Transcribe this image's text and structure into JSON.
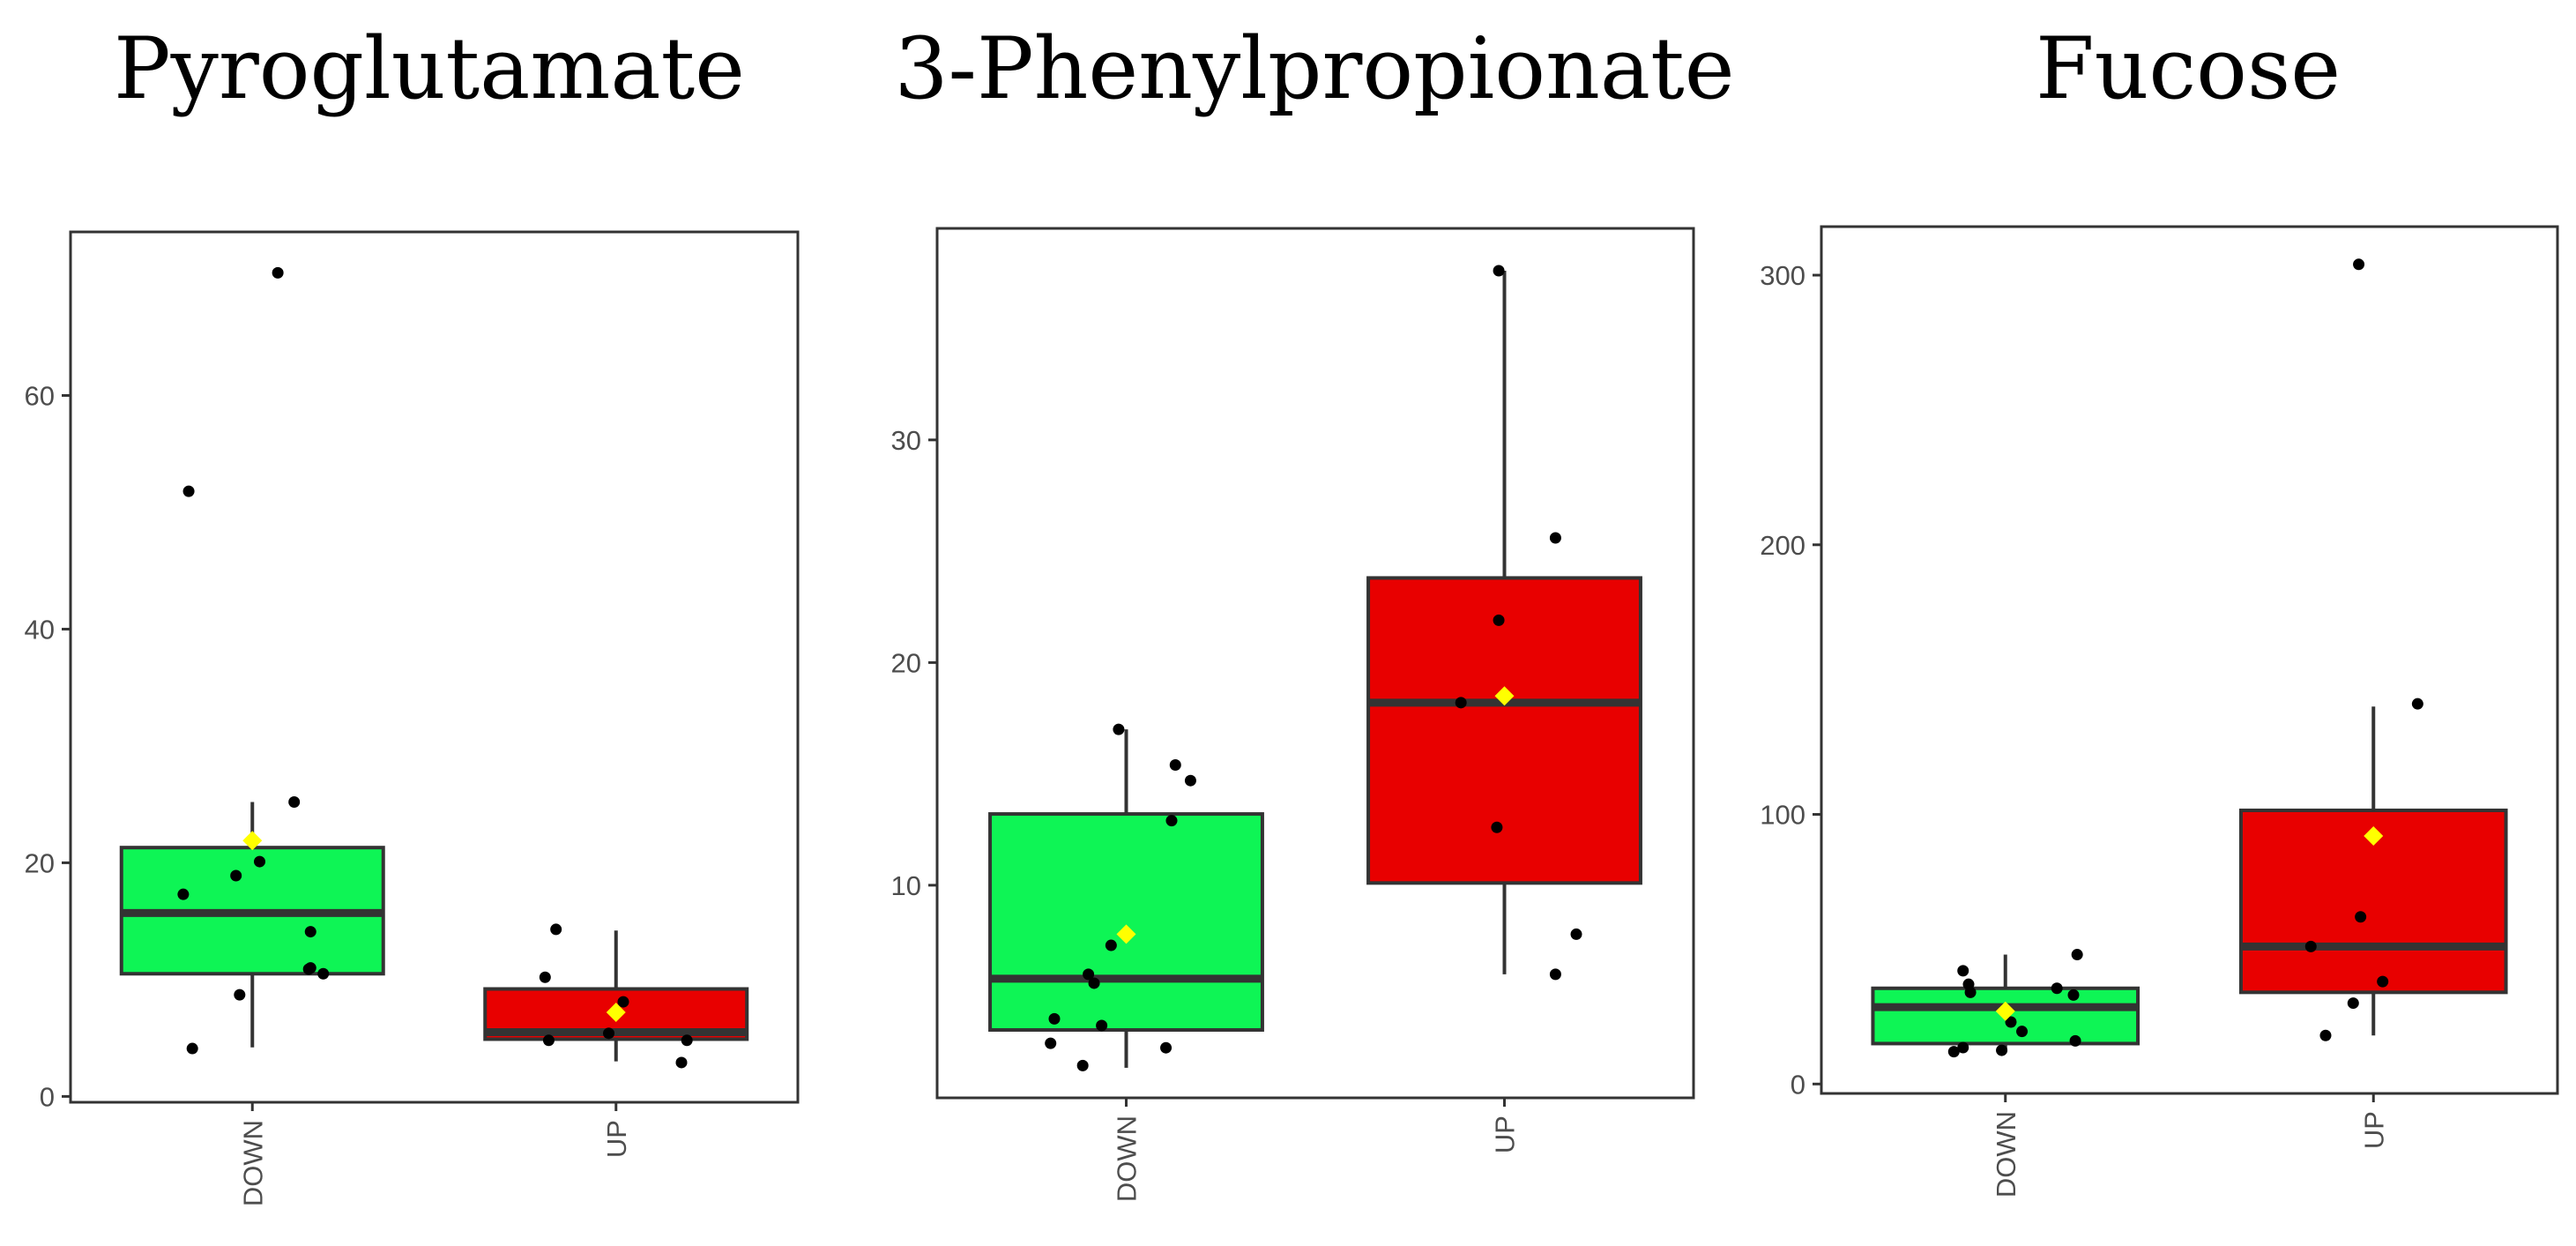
{
  "colors": {
    "down_fill": "#0ef555",
    "up_fill": "#e80000",
    "box_stroke": "#333333",
    "point": "#000000",
    "mean_marker": "#ffff00"
  },
  "chart_data": [
    {
      "type": "boxplot",
      "title": "Pyroglutamate",
      "xlabel": "",
      "ylabel": "",
      "categories": [
        "DOWN",
        "UP"
      ],
      "ylim": [
        -0.5,
        74
      ],
      "yticks": [
        0,
        20,
        40,
        60
      ],
      "boxes": [
        {
          "name": "DOWN",
          "q1": 10.5,
          "median": 15.7,
          "q3": 21.3,
          "whisker_low": 4.2,
          "whisker_high": 25.2,
          "mean": 21.9,
          "points": [
            [
              -0.38,
              17.3
            ],
            [
              -0.35,
              51.8
            ],
            [
              -0.33,
              4.1
            ],
            [
              -0.07,
              8.7
            ],
            [
              -0.09,
              18.9
            ],
            [
              0.04,
              20.1
            ],
            [
              0.14,
              70.5
            ],
            [
              0.23,
              25.2
            ],
            [
              0.32,
              14.1
            ],
            [
              0.31,
              10.9
            ],
            [
              0.39,
              10.5
            ],
            [
              0.32,
              11.0
            ]
          ]
        },
        {
          "name": "UP",
          "q1": 4.9,
          "median": 5.5,
          "q3": 9.2,
          "whisker_low": 3.0,
          "whisker_high": 14.2,
          "mean": 7.2,
          "points": [
            [
              -0.39,
              10.2
            ],
            [
              -0.37,
              4.8
            ],
            [
              -0.33,
              14.3
            ],
            [
              -0.04,
              5.4
            ],
            [
              0.04,
              8.1
            ],
            [
              0.36,
              2.9
            ],
            [
              0.39,
              4.8
            ]
          ]
        }
      ]
    },
    {
      "type": "boxplot",
      "title": "3-Phenylpropionate",
      "xlabel": "",
      "ylabel": "",
      "categories": [
        "DOWN",
        "UP"
      ],
      "ylim": [
        0.45,
        39.5
      ],
      "yticks": [
        10,
        20,
        30
      ],
      "boxes": [
        {
          "name": "DOWN",
          "q1": 3.5,
          "median": 5.8,
          "q3": 13.2,
          "whisker_low": 1.8,
          "whisker_high": 17.0,
          "mean": 7.8,
          "points": [
            [
              -0.38,
              4.0
            ],
            [
              -0.4,
              2.9
            ],
            [
              -0.23,
              1.9
            ],
            [
              -0.2,
              6.0
            ],
            [
              -0.17,
              5.6
            ],
            [
              -0.13,
              3.7
            ],
            [
              -0.08,
              7.3
            ],
            [
              -0.04,
              17.0
            ],
            [
              0.21,
              2.7
            ],
            [
              0.24,
              12.9
            ],
            [
              0.26,
              15.4
            ],
            [
              0.34,
              14.7
            ]
          ]
        },
        {
          "name": "UP",
          "q1": 10.1,
          "median": 18.2,
          "q3": 23.8,
          "whisker_low": 6.0,
          "whisker_high": 37.6,
          "mean": 18.5,
          "points": [
            [
              -0.23,
              18.2
            ],
            [
              -0.04,
              12.6
            ],
            [
              -0.03,
              21.9
            ],
            [
              -0.03,
              37.6
            ],
            [
              0.27,
              25.6
            ],
            [
              0.27,
              6.0
            ],
            [
              0.38,
              7.8
            ]
          ]
        }
      ]
    },
    {
      "type": "boxplot",
      "title": "Fucose",
      "xlabel": "",
      "ylabel": "",
      "categories": [
        "DOWN",
        "UP"
      ],
      "ylim": [
        -3.5,
        318
      ],
      "yticks": [
        0,
        100,
        200,
        300
      ],
      "boxes": [
        {
          "name": "DOWN",
          "q1": 15.0,
          "median": 28.5,
          "q3": 35.5,
          "whisker_low": 12.0,
          "whisker_high": 48.0,
          "mean": 27.0,
          "points": [
            [
              -0.28,
              12.0
            ],
            [
              -0.23,
              13.5
            ],
            [
              -0.23,
              42.0
            ],
            [
              -0.2,
              37.0
            ],
            [
              -0.19,
              34.0
            ],
            [
              -0.02,
              12.5
            ],
            [
              0.03,
              23.0
            ],
            [
              0.09,
              19.5
            ],
            [
              0.28,
              35.5
            ],
            [
              0.37,
              33.0
            ],
            [
              0.38,
              16.0
            ],
            [
              0.39,
              48.0
            ]
          ]
        },
        {
          "name": "UP",
          "q1": 34.0,
          "median": 51.0,
          "q3": 101.5,
          "whisker_low": 18.0,
          "whisker_high": 140.0,
          "mean": 92.0,
          "points": [
            [
              -0.34,
              51.0
            ],
            [
              -0.26,
              18.0
            ],
            [
              -0.11,
              30.0
            ],
            [
              -0.08,
              304.0
            ],
            [
              -0.07,
              62.0
            ],
            [
              0.05,
              38.0
            ],
            [
              0.24,
              141.0
            ]
          ]
        }
      ]
    }
  ]
}
